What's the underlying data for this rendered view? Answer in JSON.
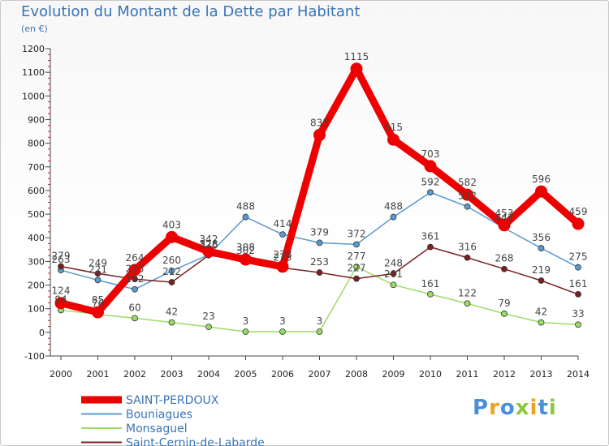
{
  "title": "Evolution du Montant de la Dette par Habitant",
  "subtitle": "(en €)",
  "logo": {
    "text": "Proxiti",
    "colors": [
      "#4c8fd8",
      "#f0a020",
      "#8dc63f"
    ]
  },
  "chart_data": {
    "type": "line",
    "title": "Evolution du Montant de la Dette par Habitant",
    "subtitle": "(en €)",
    "x": [
      "2000",
      "2001",
      "2002",
      "2003",
      "2004",
      "2005",
      "2006",
      "2007",
      "2008",
      "2009",
      "2010",
      "2011",
      "2012",
      "2013",
      "2014"
    ],
    "ylim": [
      -100,
      1200
    ],
    "yticks": [
      -100,
      0,
      100,
      200,
      300,
      400,
      500,
      600,
      700,
      800,
      900,
      1000,
      1100,
      1200
    ],
    "grid": false,
    "legend_position": "bottom-left",
    "series": [
      {
        "name": "SAINT-PERDOUX",
        "color": "#ee0000",
        "thick": true,
        "values": [
          124,
          85,
          264,
          403,
          342,
          308,
          278,
          835,
          1115,
          815,
          703,
          582,
          453,
          596,
          459
        ]
      },
      {
        "name": "Bouniagues",
        "color": "#5a9ad0",
        "thick": false,
        "values": [
          263,
          221,
          182,
          260,
          328,
          488,
          414,
          379,
          372,
          488,
          592,
          532,
          441,
          356,
          275
        ]
      },
      {
        "name": "Monsaguel",
        "color": "#99dd66",
        "thick": false,
        "values": [
          94,
          76,
          60,
          42,
          23,
          3,
          3,
          3,
          277,
          201,
          161,
          122,
          79,
          42,
          33
        ]
      },
      {
        "name": "Saint-Cernin-de-Labarde",
        "color": "#7a2020",
        "thick": false,
        "values": [
          279,
          249,
          225,
          212,
          326,
          302,
          273,
          253,
          227,
          248,
          361,
          316,
          268,
          219,
          161
        ]
      }
    ]
  }
}
